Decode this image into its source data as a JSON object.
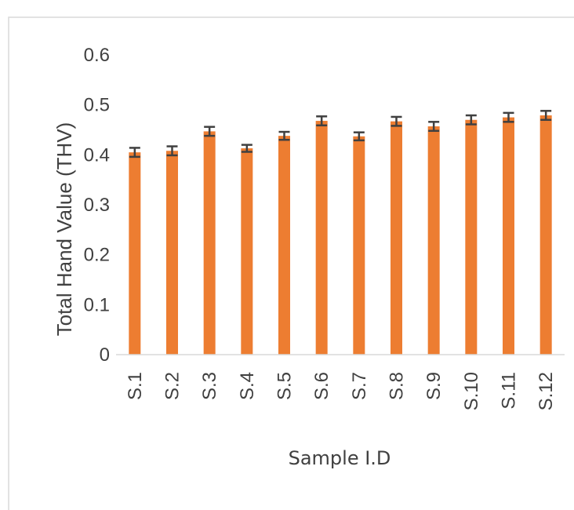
{
  "chart_data": {
    "type": "bar",
    "categories": [
      "S.1",
      "S.2",
      "S.3",
      "S.4",
      "S.5",
      "S.6",
      "S.7",
      "S.8",
      "S.9",
      "S.10",
      "S.11",
      "S.12"
    ],
    "values": [
      0.405,
      0.408,
      0.447,
      0.413,
      0.438,
      0.468,
      0.437,
      0.467,
      0.457,
      0.47,
      0.475,
      0.479
    ],
    "error": [
      0.009,
      0.009,
      0.009,
      0.007,
      0.008,
      0.009,
      0.008,
      0.009,
      0.009,
      0.009,
      0.009,
      0.009
    ],
    "title": "",
    "xlabel": "Sample I.D",
    "ylabel": "Total Hand Value (THV)",
    "ylim": [
      0,
      0.6
    ],
    "yticks": [
      "0",
      "0.1",
      "0.2",
      "0.3",
      "0.4",
      "0.5",
      "0.6"
    ],
    "grid": false,
    "legend": "none",
    "colors": {
      "bar": "#ed7d31",
      "error_bar": "#404040",
      "axis": "#d9d9d9",
      "frame": "#d9d9d9",
      "text": "#404040"
    }
  }
}
